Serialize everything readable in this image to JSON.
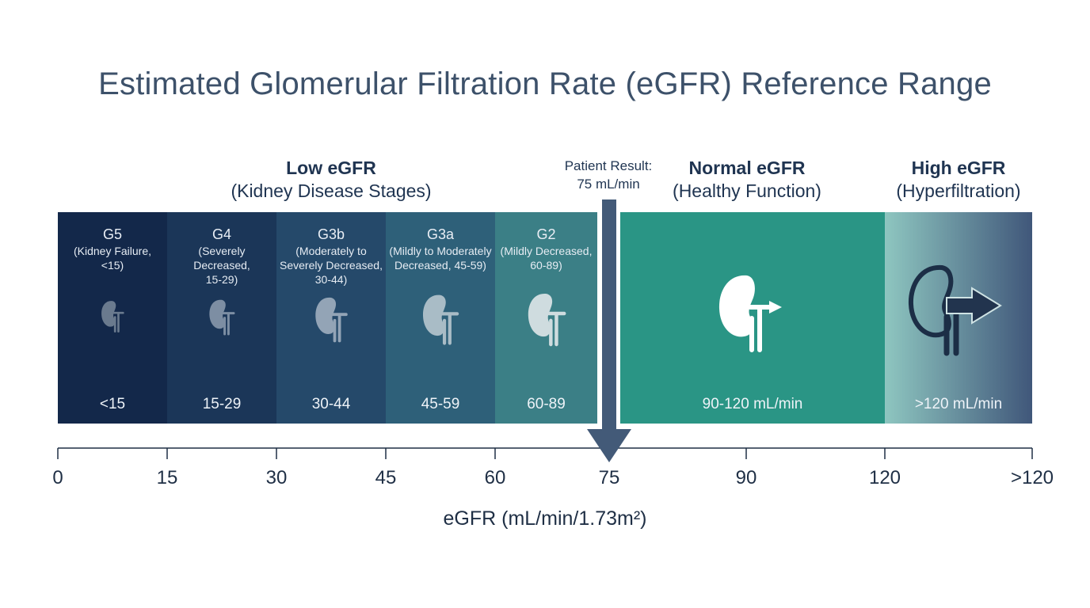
{
  "title": "Estimated Glomerular Filtration Rate (eGFR) Reference Range",
  "groups": {
    "low": {
      "name": "Low eGFR",
      "desc": "(Kidney Disease Stages)"
    },
    "normal": {
      "name": "Normal eGFR",
      "desc": "(Healthy Function)"
    },
    "high": {
      "name": "High eGFR",
      "desc": "(Hyperfiltration)"
    }
  },
  "patient": {
    "line1": "Patient Result:",
    "line2": "75 mL/min",
    "value": 75
  },
  "stages": [
    {
      "name": "G5",
      "desc": "(Kidney Failure, <15)",
      "range": "<15",
      "color": "#13284a"
    },
    {
      "name": "G4",
      "desc": "(Severely Decreased, 15-29)",
      "range": "15-29",
      "color": "#1b3658"
    },
    {
      "name": "G3b",
      "desc": "(Moderately to Severely Decreased, 30-44)",
      "range": "30-44",
      "color": "#25496a"
    },
    {
      "name": "G3a",
      "desc": "(Mildly to Moderately Decreased, 45-59)",
      "range": "45-59",
      "color": "#2e6079"
    },
    {
      "name": "G2",
      "desc": "(Mildly Decreased, 60-89)",
      "range": "60-89",
      "color": "#3b7f86"
    }
  ],
  "normal_band": {
    "range": "90-120 mL/min",
    "color": "#2a9585"
  },
  "high_band": {
    "range": ">120 mL/min",
    "color_start": "#8ec6c0",
    "color_end": "#40577a"
  },
  "arrow_color": "#435a78",
  "axis": {
    "ticks": [
      "0",
      "15",
      "30",
      "45",
      "60",
      "75",
      "90",
      "120",
      ">120"
    ],
    "title": "eGFR (mL/min/1.73m²)"
  }
}
